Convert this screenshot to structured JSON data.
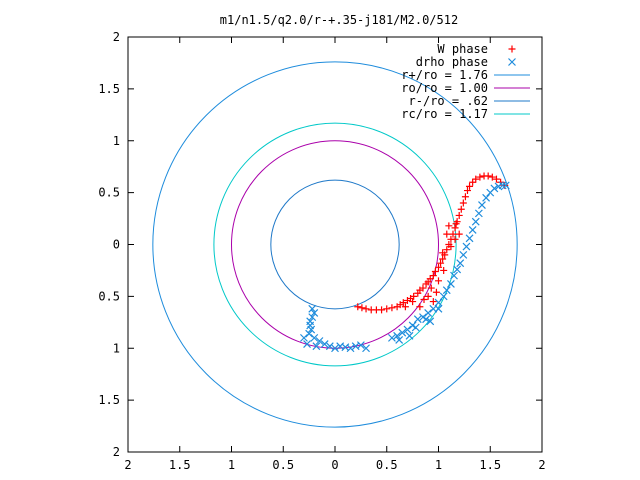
{
  "chart_data": {
    "type": "scatter",
    "title": "m1/n1.5/q2.0/r-+.35-j181/M2.0/512",
    "xlabel": "",
    "ylabel": "",
    "xlim": [
      -2,
      2
    ],
    "ylim": [
      -2,
      2
    ],
    "grid": false,
    "legend_position": "top-right",
    "x_ticks": [
      "2",
      "1.5",
      "1",
      "0.5",
      "0",
      "0.5",
      "1",
      "1.5",
      "2"
    ],
    "y_ticks": [
      "2",
      "1.5",
      "1",
      "0.5",
      "0",
      "0.5",
      "1",
      "1.5",
      "2"
    ],
    "colors": {
      "w_phase": "#ff0000",
      "drho_phase": "#1e8cdc",
      "r_plus": "#1e8cdc",
      "r_o": "#aa00aa",
      "r_minus": "#1e78c8",
      "r_c": "#00c8c8"
    },
    "circles": [
      {
        "name": "r+/ro = 1.76",
        "radius": 1.76,
        "color": "#1e8cdc"
      },
      {
        "name": "ro/ro = 1.00",
        "radius": 1.0,
        "color": "#aa00aa"
      },
      {
        "name": "r-/ro = .62",
        "radius": 0.62,
        "color": "#1e78c8"
      },
      {
        "name": "rc/ro = 1.17",
        "radius": 1.17,
        "color": "#00c8c8"
      }
    ],
    "series": [
      {
        "name": "W phase",
        "marker": "plus",
        "color": "#ff0000",
        "points": [
          [
            0.22,
            -0.6
          ],
          [
            0.26,
            -0.61
          ],
          [
            0.3,
            -0.62
          ],
          [
            0.35,
            -0.63
          ],
          [
            0.4,
            -0.63
          ],
          [
            0.45,
            -0.63
          ],
          [
            0.5,
            -0.62
          ],
          [
            0.55,
            -0.61
          ],
          [
            0.6,
            -0.6
          ],
          [
            0.63,
            -0.58
          ],
          [
            0.66,
            -0.56
          ],
          [
            0.7,
            -0.54
          ],
          [
            0.73,
            -0.52
          ],
          [
            0.76,
            -0.5
          ],
          [
            0.8,
            -0.47
          ],
          [
            0.82,
            -0.44
          ],
          [
            0.85,
            -0.42
          ],
          [
            0.88,
            -0.38
          ],
          [
            0.9,
            -0.36
          ],
          [
            0.92,
            -0.33
          ],
          [
            0.95,
            -0.3
          ],
          [
            0.97,
            -0.26
          ],
          [
            1.0,
            -0.22
          ],
          [
            1.02,
            -0.18
          ],
          [
            1.04,
            -0.14
          ],
          [
            1.06,
            -0.1
          ],
          [
            1.08,
            -0.05
          ],
          [
            1.1,
            0.0
          ],
          [
            1.12,
            0.05
          ],
          [
            1.14,
            0.1
          ],
          [
            1.16,
            0.16
          ],
          [
            1.18,
            0.22
          ],
          [
            1.2,
            0.28
          ],
          [
            1.22,
            0.34
          ],
          [
            1.24,
            0.4
          ],
          [
            1.26,
            0.46
          ],
          [
            1.28,
            0.52
          ],
          [
            1.3,
            0.56
          ],
          [
            1.33,
            0.6
          ],
          [
            1.36,
            0.63
          ],
          [
            1.4,
            0.65
          ],
          [
            1.44,
            0.66
          ],
          [
            1.48,
            0.66
          ],
          [
            1.52,
            0.65
          ],
          [
            1.56,
            0.63
          ],
          [
            1.6,
            0.6
          ],
          [
            1.64,
            0.57
          ],
          [
            0.68,
            -0.6
          ],
          [
            0.75,
            -0.55
          ],
          [
            0.82,
            -0.6
          ],
          [
            0.9,
            -0.5
          ],
          [
            0.95,
            -0.55
          ],
          [
            1.0,
            -0.35
          ],
          [
            1.05,
            -0.25
          ],
          [
            1.08,
            0.1
          ],
          [
            1.12,
            -0.02
          ],
          [
            1.16,
            0.05
          ],
          [
            1.2,
            0.1
          ],
          [
            0.98,
            -0.46
          ],
          [
            0.93,
            -0.42
          ],
          [
            1.04,
            -0.08
          ],
          [
            1.1,
            0.18
          ],
          [
            1.17,
            0.2
          ],
          [
            0.86,
            -0.53
          ]
        ]
      },
      {
        "name": "drho phase",
        "marker": "cross",
        "color": "#1e8cdc",
        "points": [
          [
            -0.22,
            -0.62
          ],
          [
            -0.2,
            -0.66
          ],
          [
            -0.22,
            -0.7
          ],
          [
            -0.24,
            -0.74
          ],
          [
            -0.24,
            -0.78
          ],
          [
            -0.23,
            -0.82
          ],
          [
            -0.25,
            -0.86
          ],
          [
            -0.2,
            -0.9
          ],
          [
            -0.15,
            -0.93
          ],
          [
            -0.1,
            -0.96
          ],
          [
            -0.05,
            -0.98
          ],
          [
            0.0,
            -1.0
          ],
          [
            0.05,
            -0.98
          ],
          [
            0.1,
            -0.99
          ],
          [
            0.15,
            -1.0
          ],
          [
            0.2,
            -0.98
          ],
          [
            0.25,
            -0.97
          ],
          [
            0.3,
            -1.0
          ],
          [
            -0.3,
            -0.9
          ],
          [
            -0.27,
            -0.96
          ],
          [
            -0.18,
            -0.98
          ],
          [
            0.55,
            -0.9
          ],
          [
            0.6,
            -0.88
          ],
          [
            0.65,
            -0.85
          ],
          [
            0.7,
            -0.82
          ],
          [
            0.75,
            -0.78
          ],
          [
            0.8,
            -0.72
          ],
          [
            0.85,
            -0.7
          ],
          [
            0.9,
            -0.66
          ],
          [
            0.95,
            -0.62
          ],
          [
            1.0,
            -0.56
          ],
          [
            1.05,
            -0.5
          ],
          [
            1.08,
            -0.44
          ],
          [
            1.12,
            -0.38
          ],
          [
            1.15,
            -0.3
          ],
          [
            1.18,
            -0.24
          ],
          [
            1.21,
            -0.18
          ],
          [
            1.24,
            -0.1
          ],
          [
            1.27,
            -0.02
          ],
          [
            1.3,
            0.06
          ],
          [
            1.33,
            0.14
          ],
          [
            1.36,
            0.22
          ],
          [
            1.39,
            0.3
          ],
          [
            1.42,
            0.38
          ],
          [
            1.46,
            0.45
          ],
          [
            1.5,
            0.5
          ],
          [
            1.54,
            0.54
          ],
          [
            1.58,
            0.56
          ],
          [
            1.62,
            0.57
          ],
          [
            1.65,
            0.57
          ],
          [
            0.62,
            -0.92
          ],
          [
            0.78,
            -0.8
          ],
          [
            0.88,
            -0.72
          ],
          [
            0.92,
            -0.74
          ],
          [
            1.0,
            -0.62
          ],
          [
            0.72,
            -0.88
          ]
        ]
      }
    ]
  }
}
